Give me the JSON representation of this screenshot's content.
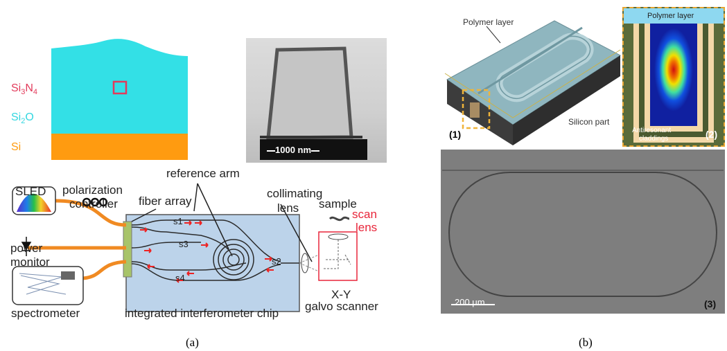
{
  "panel_a": {
    "layers": {
      "core": "Si3N4",
      "cladding": "Si2O",
      "substrate": "Si"
    },
    "scale_bar": "1000 nm",
    "schematic": {
      "sled": "SLED",
      "polarization": [
        "polarization",
        "controller"
      ],
      "power_monitor": [
        "power",
        "monitor"
      ],
      "spectrometer": "spectrometer",
      "fiber_array": "fiber array",
      "reference_arm": "reference arm",
      "collimating_lens": [
        "collimating",
        "lens"
      ],
      "sample": "sample",
      "scan_lens": [
        "scan",
        "lens"
      ],
      "xy": "X-Y",
      "galvo": "galvo scanner",
      "chip": "integrated interferometer chip",
      "splitters": [
        "s1",
        "s2",
        "s3",
        "s4"
      ]
    },
    "caption": "(a)"
  },
  "panel_b": {
    "polymer_layer": "Polymer layer",
    "inset_polymer_layer": "Polymer layer",
    "silicon_part": "Silicon part",
    "antiresonant": [
      "Antiresonant",
      "claddings"
    ],
    "labels": [
      "(1)",
      "(2)",
      "(3)"
    ],
    "scale_bar": "200 μm",
    "caption": "(b)"
  },
  "colors": {
    "cladding": "#33e0e6",
    "substrate": "#ff9b10",
    "core": "#e23b5b",
    "fiber": "#f08a22",
    "chip": "#bcd3ea",
    "arrow": "#ee2222",
    "dash": "#e8a530"
  }
}
